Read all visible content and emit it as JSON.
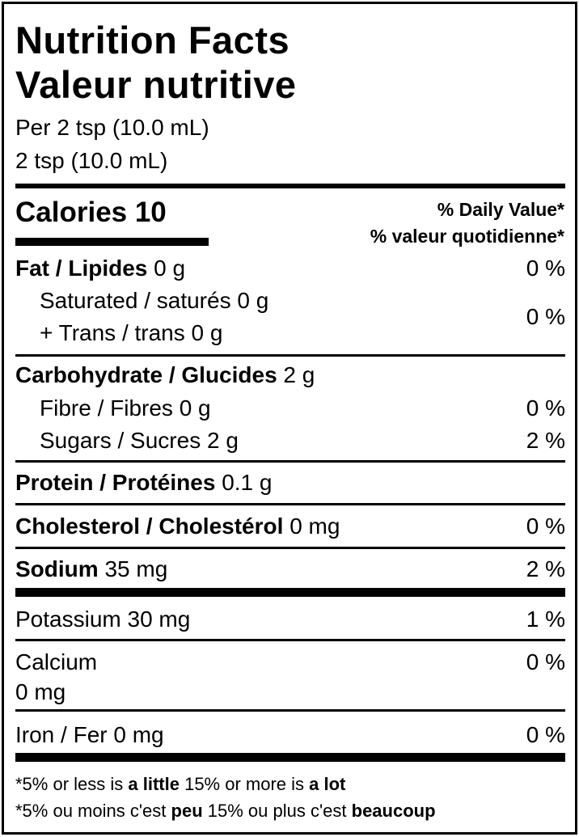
{
  "title_en": "Nutrition Facts",
  "title_fr": "Valeur nutritive",
  "serving_line1": "Per 2 tsp (10.0 mL)",
  "serving_line2": "2 tsp (10.0 mL)",
  "calories": "Calories 10",
  "daily_value_en": "% Daily Value*",
  "daily_value_fr": "% valeur quotidienne*",
  "nutrients": {
    "fat": {
      "name": "Fat / Lipides",
      "amount": "0 g",
      "dv": "0 %"
    },
    "saturated": {
      "name": "Saturated / saturés 0 g"
    },
    "trans": {
      "name": "+ Trans / trans 0 g",
      "dv": "0 %"
    },
    "carbohydrate": {
      "name": "Carbohydrate / Glucides",
      "amount": "2 g"
    },
    "fibre": {
      "name": "Fibre / Fibres 0 g",
      "dv": "0 %"
    },
    "sugars": {
      "name": "Sugars / Sucres 2 g",
      "dv": "2 %"
    },
    "protein": {
      "name": "Protein / Protéines",
      "amount": "0.1 g"
    },
    "cholesterol": {
      "name": "Cholesterol / Cholestérol",
      "amount": "0 mg",
      "dv": "0 %"
    },
    "sodium": {
      "name": "Sodium",
      "amount": "35 mg",
      "dv": "2 %"
    },
    "potassium": {
      "name": "Potassium 30 mg",
      "dv": "1 %"
    },
    "calcium": {
      "name": "Calcium",
      "amount": "0 mg",
      "dv": "0 %"
    },
    "iron": {
      "name": "Iron / Fer 0 mg",
      "dv": "0 %"
    }
  },
  "footnote_en": {
    "a": "*5% or less is ",
    "b": "a little",
    "c": " 15% or more is ",
    "d": "a lot"
  },
  "footnote_fr": {
    "a": "*5% ou moins c'est ",
    "b": "peu",
    "c": " 15% ou plus c'est ",
    "d": "beaucoup"
  }
}
